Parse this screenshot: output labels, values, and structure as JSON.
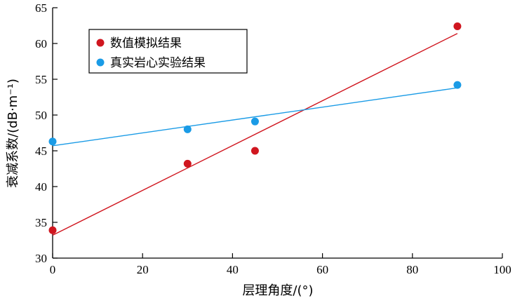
{
  "chart_data": {
    "type": "scatter",
    "xlabel": "层理角度/(°)",
    "ylabel": "衰减系数/(dB·m⁻¹)",
    "xlim": [
      0,
      100
    ],
    "ylim": [
      30,
      65
    ],
    "xticks": [
      0,
      20,
      40,
      60,
      80,
      100
    ],
    "yticks": [
      30,
      35,
      40,
      45,
      50,
      55,
      60,
      65
    ],
    "xtick_labels": [
      "0",
      "20",
      "40",
      "60",
      "80",
      "100"
    ],
    "ytick_labels": [
      "30",
      "35",
      "40",
      "45",
      "50",
      "55",
      "60",
      "65"
    ],
    "grid": false,
    "legend_position": "top-left",
    "series": [
      {
        "name": "数值模拟结果",
        "color": "#d0161f",
        "x": [
          0,
          30,
          45,
          90
        ],
        "y": [
          33.9,
          43.2,
          45.0,
          62.4
        ],
        "fit_line": {
          "x": [
            0,
            90
          ],
          "y": [
            33.2,
            61.4
          ]
        }
      },
      {
        "name": "真实岩心实验结果",
        "color": "#1a9be6",
        "x": [
          0,
          30,
          45,
          90
        ],
        "y": [
          46.3,
          48.0,
          49.1,
          54.2
        ],
        "fit_line": {
          "x": [
            0,
            90
          ],
          "y": [
            45.7,
            53.8
          ]
        }
      }
    ]
  }
}
